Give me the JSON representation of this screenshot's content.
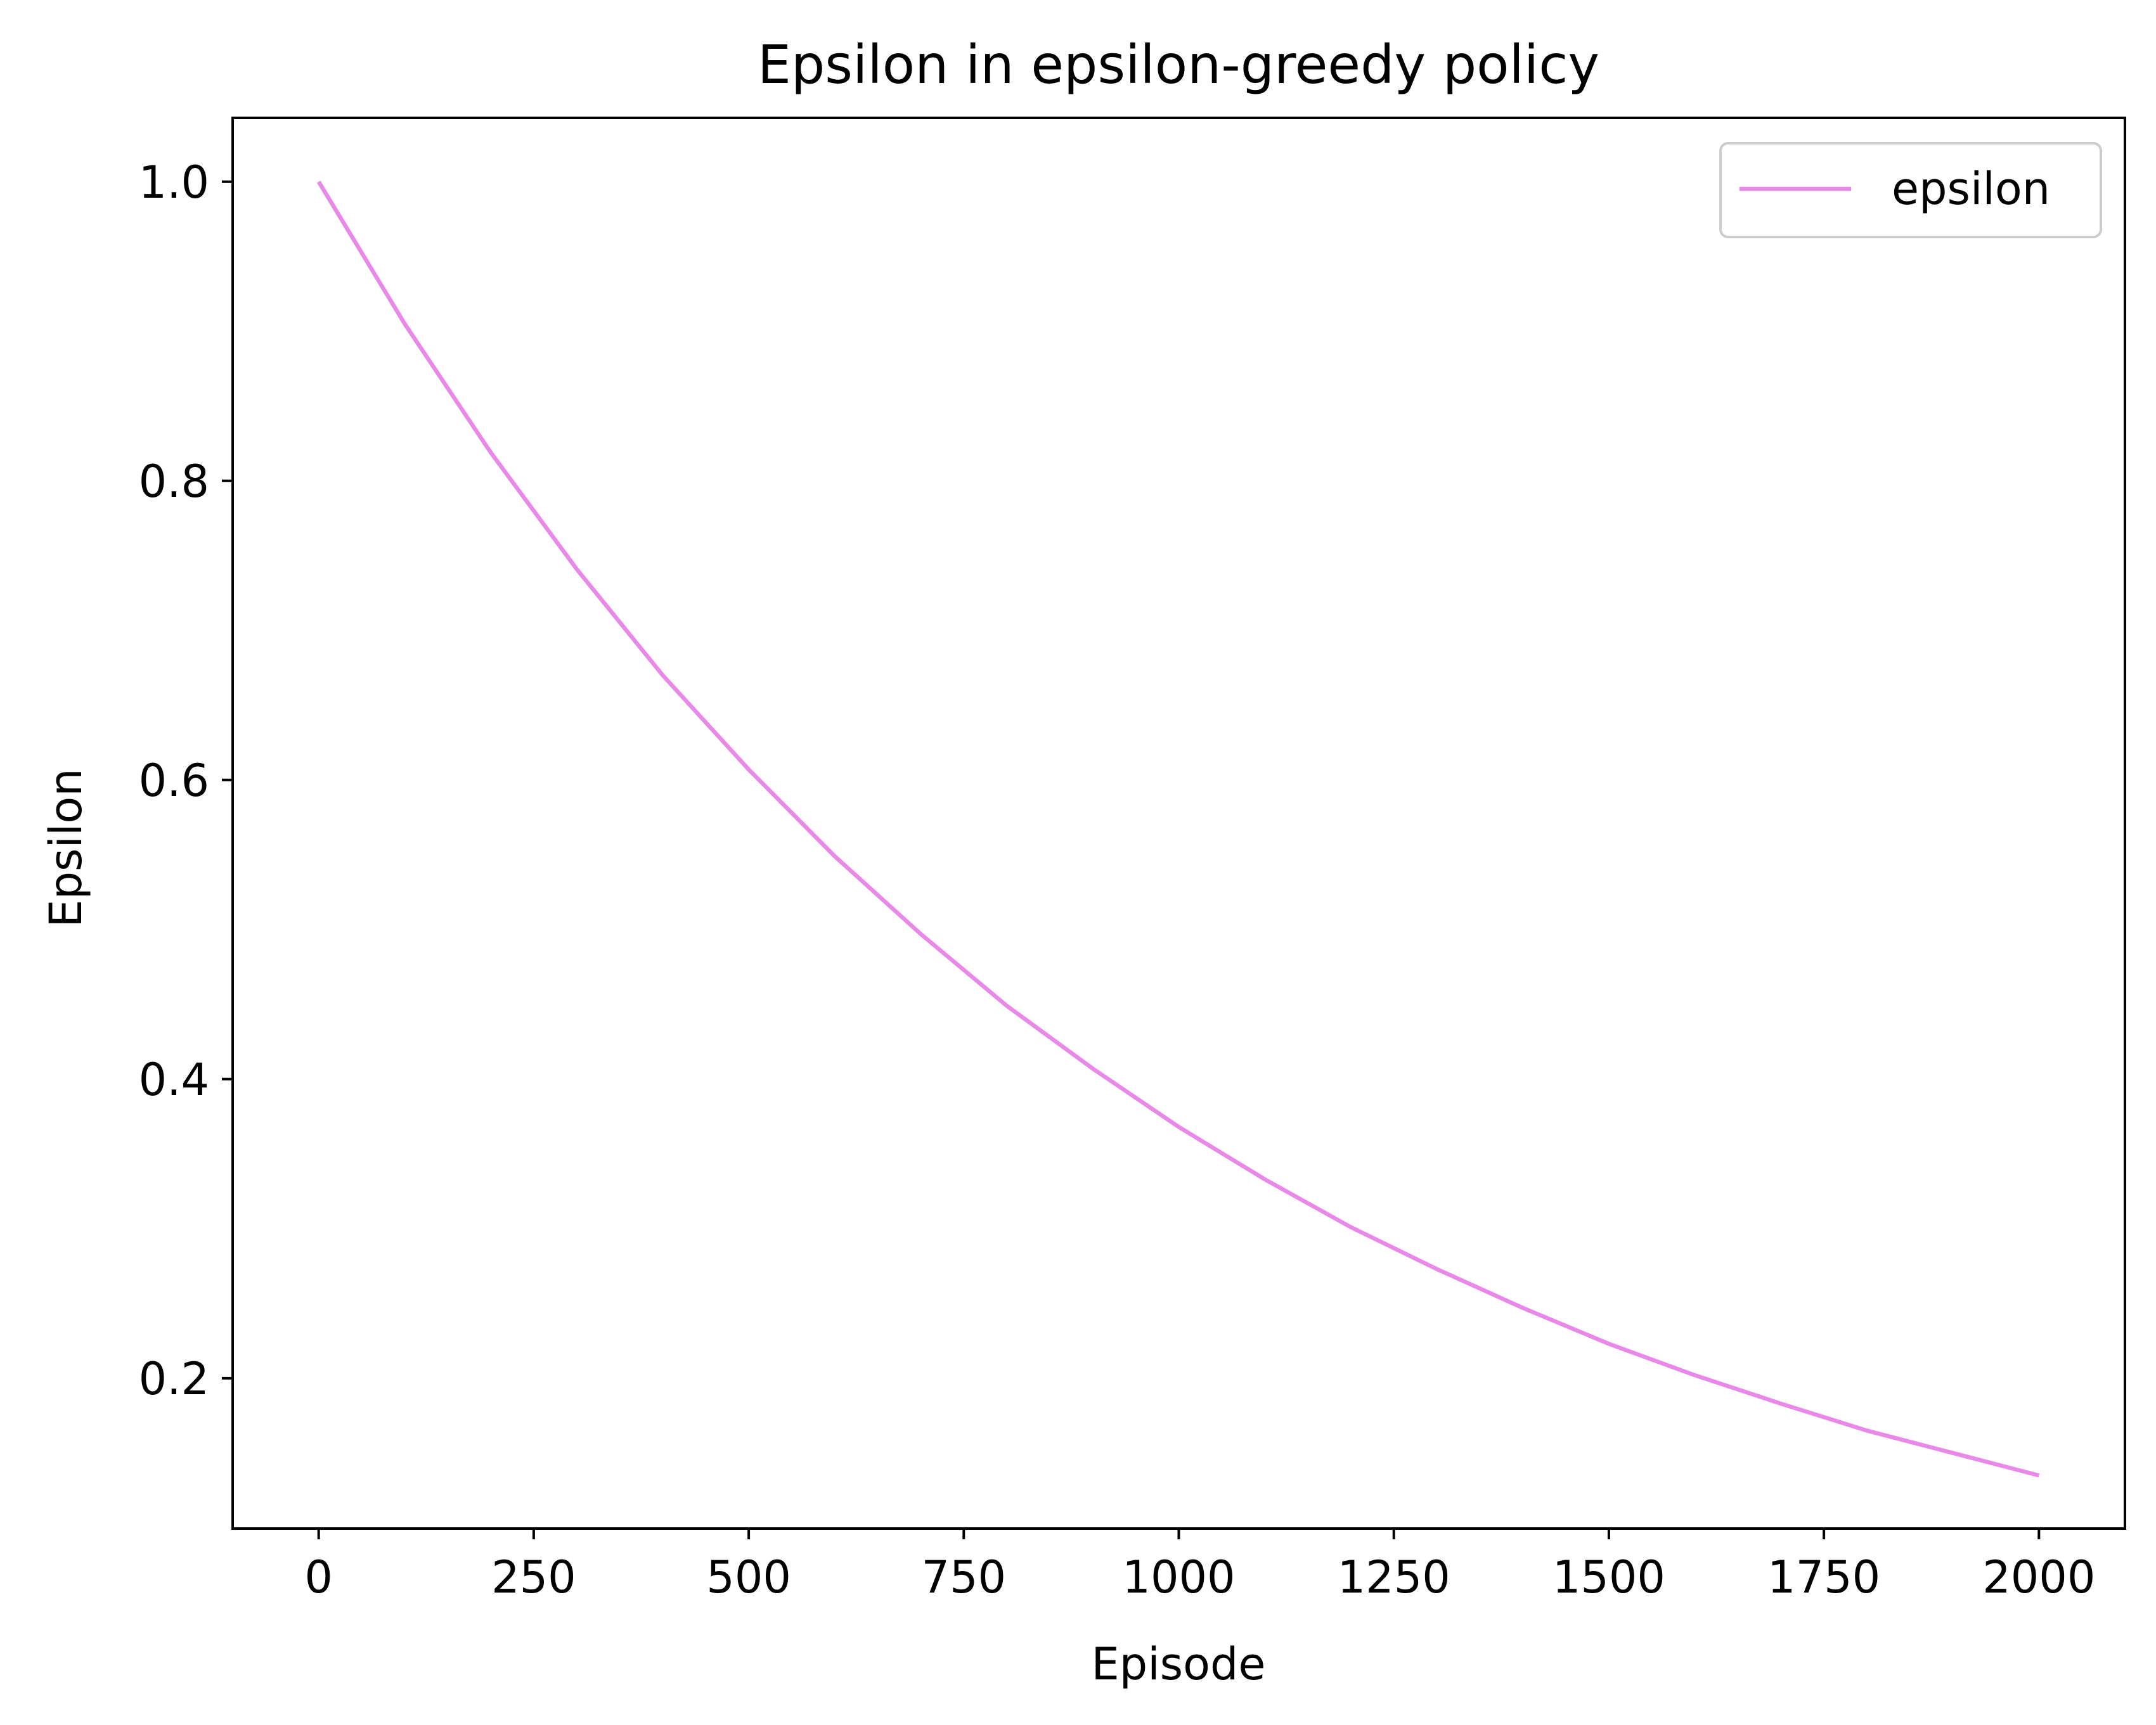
{
  "chart_data": {
    "type": "line",
    "title": "Epsilon in epsilon-greedy policy",
    "xlabel": "Episode",
    "ylabel": "Epsilon",
    "xlim": [
      -100,
      2100
    ],
    "ylim": [
      0.0995,
      1.0427
    ],
    "x_ticks": [
      0,
      250,
      500,
      750,
      1000,
      1250,
      1500,
      1750,
      2000
    ],
    "x_tick_labels": [
      "0",
      "250",
      "500",
      "750",
      "1000",
      "1250",
      "1500",
      "1750",
      "2000"
    ],
    "y_ticks": [
      0.2,
      0.4,
      0.6,
      0.8,
      1.0
    ],
    "y_tick_labels": [
      "0.2",
      "0.4",
      "0.6",
      "0.8",
      "1.0"
    ],
    "grid": false,
    "legend_position": "upper right",
    "series": [
      {
        "name": "epsilon",
        "color": "#e888e8",
        "x": [
          0,
          100,
          200,
          300,
          400,
          500,
          600,
          700,
          800,
          900,
          1000,
          1100,
          1200,
          1300,
          1400,
          1500,
          1600,
          1700,
          1800,
          1900,
          2000
        ],
        "y": [
          1.0,
          0.905,
          0.819,
          0.741,
          0.67,
          0.607,
          0.549,
          0.497,
          0.449,
          0.407,
          0.368,
          0.333,
          0.301,
          0.273,
          0.247,
          0.223,
          0.202,
          0.183,
          0.165,
          0.15,
          0.135
        ]
      }
    ]
  }
}
